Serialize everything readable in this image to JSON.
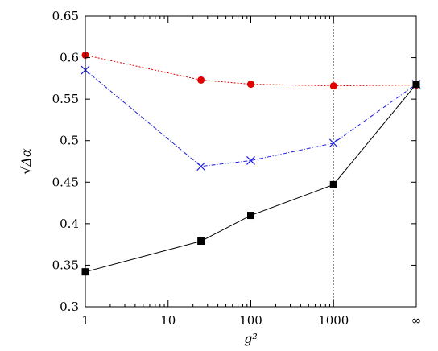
{
  "chart_data": {
    "type": "line",
    "x_scale": "log",
    "x_ticks": [
      {
        "value": 1,
        "label": "1"
      },
      {
        "value": 10,
        "label": "10"
      },
      {
        "value": 100,
        "label": "100"
      },
      {
        "value": 1000,
        "label": "1000"
      },
      {
        "value": "inf",
        "label": "∞"
      }
    ],
    "y_ticks": [
      "0.3",
      "0.35",
      "0.4",
      "0.45",
      "0.5",
      "0.55",
      "0.6",
      "0.65"
    ],
    "ylim": [
      0.3,
      0.65
    ],
    "xlabel": "g²",
    "ylabel": "√Δα",
    "vertical_reference_line": {
      "x": 1000,
      "style": "dotted"
    },
    "series": [
      {
        "color": "#e00000",
        "marker": "circle",
        "line_style": "dotted",
        "x": [
          1,
          25,
          100,
          1000,
          "inf"
        ],
        "y": [
          0.603,
          0.573,
          0.568,
          0.566,
          0.567
        ]
      },
      {
        "color": "#2020e0",
        "marker": "x",
        "line_style": "dash-dot",
        "x": [
          1,
          25,
          100,
          1000,
          "inf"
        ],
        "y": [
          0.585,
          0.469,
          0.476,
          0.497,
          0.568
        ]
      },
      {
        "color": "#000000",
        "marker": "square",
        "line_style": "solid",
        "x": [
          1,
          25,
          100,
          1000,
          "inf"
        ],
        "y": [
          0.342,
          0.379,
          0.41,
          0.447,
          0.568
        ]
      }
    ]
  }
}
